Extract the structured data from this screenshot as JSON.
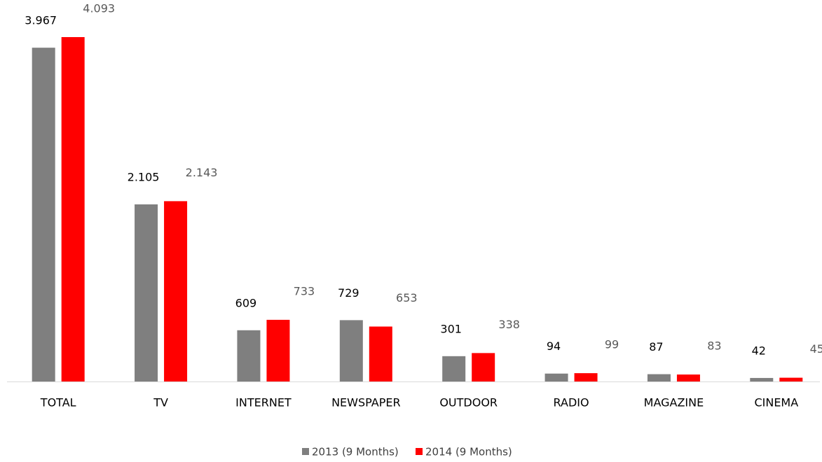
{
  "chart_data": {
    "type": "bar",
    "categories": [
      "TOTAL",
      "TV",
      "INTERNET",
      "NEWSPAPER",
      "OUTDOOR",
      "RADIO",
      "MAGAZINE",
      "CINEMA"
    ],
    "series": [
      {
        "name": "2013 (9 Months)",
        "color": "#7f7f7f",
        "values": [
          3967,
          2105,
          609,
          729,
          301,
          94,
          87,
          42
        ],
        "value_labels": [
          "3.967",
          "2.105",
          "609",
          "729",
          "301",
          "94",
          "87",
          "42"
        ]
      },
      {
        "name": "2014 (9 Months)",
        "color": "#ff0000",
        "values": [
          4093,
          2143,
          733,
          653,
          338,
          99,
          83,
          45
        ],
        "value_labels": [
          "4.093",
          "2.143",
          "733",
          "653",
          "338",
          "99",
          "83",
          "45"
        ]
      }
    ],
    "legend": "bottom"
  }
}
